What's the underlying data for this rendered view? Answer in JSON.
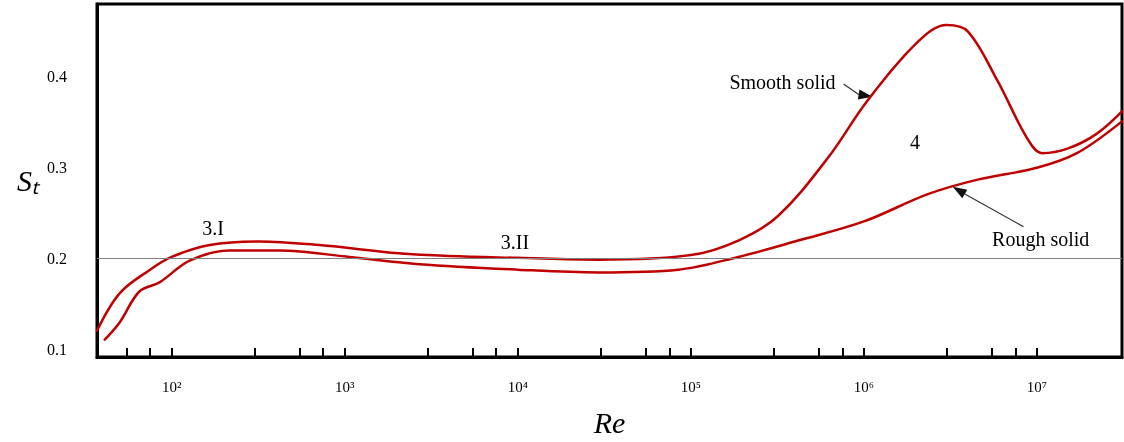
{
  "chart_data": {
    "type": "line",
    "xlabel": "Re",
    "ylabel": "Sₜ",
    "log": "x",
    "xlim": [
      37,
      31000000
    ],
    "ylim": [
      0.092,
      0.48
    ],
    "xticks": [
      {
        "value": 55,
        "label": null
      },
      {
        "value": 75,
        "label": null
      },
      {
        "value": 100,
        "label": "10²"
      },
      {
        "value": 300,
        "label": null
      },
      {
        "value": 550,
        "label": null
      },
      {
        "value": 750,
        "label": null
      },
      {
        "value": 1000,
        "label": "10³"
      },
      {
        "value": 3000,
        "label": null
      },
      {
        "value": 5500,
        "label": null
      },
      {
        "value": 7500,
        "label": null
      },
      {
        "value": 10000,
        "label": "10⁴"
      },
      {
        "value": 30000,
        "label": null
      },
      {
        "value": 55000,
        "label": null
      },
      {
        "value": 75000,
        "label": null
      },
      {
        "value": 100000,
        "label": "10⁵"
      },
      {
        "value": 300000,
        "label": null
      },
      {
        "value": 550000,
        "label": null
      },
      {
        "value": 750000,
        "label": null
      },
      {
        "value": 1000000,
        "label": "10⁶"
      },
      {
        "value": 3000000,
        "label": null
      },
      {
        "value": 5500000,
        "label": null
      },
      {
        "value": 7500000,
        "label": null
      },
      {
        "value": 10000000,
        "label": "10⁷"
      }
    ],
    "yticks": [
      0.1,
      0.2,
      0.3,
      0.4
    ],
    "grid": false,
    "marker": "none",
    "line_style": "solid",
    "ref_lines": [
      {
        "axis": "y",
        "value": 0.2,
        "color": "#808080"
      }
    ],
    "series": [
      {
        "color": "#c00000",
        "x": [
          37,
          50,
          75,
          100,
          166,
          321,
          713,
          2060,
          4000,
          10000,
          29300,
          100000,
          188000,
          319000,
          620000,
          1050000,
          2040000,
          3000000,
          3980000,
          5900000,
          8800000,
          10700000,
          15000000,
          22000000,
          31000000
        ],
        "values": [
          0.121,
          0.162,
          0.188,
          0.202,
          0.215,
          0.219,
          0.215,
          0.206,
          0.203,
          0.201,
          0.199,
          0.204,
          0.22,
          0.247,
          0.311,
          0.374,
          0.438,
          0.457,
          0.45,
          0.396,
          0.332,
          0.316,
          0.321,
          0.337,
          0.362
        ]
      },
      {
        "color": "#c00000",
        "x": [
          41,
          50,
          65,
          85,
          127,
          216,
          419,
          1060,
          2690,
          10000,
          29300,
          84700,
          188000,
          417000,
          1000000,
          2340000,
          4540000,
          10000000,
          17000000,
          31000000
        ],
        "values": [
          0.111,
          0.13,
          0.164,
          0.174,
          0.198,
          0.209,
          0.209,
          0.202,
          0.194,
          0.188,
          0.185,
          0.188,
          0.202,
          0.22,
          0.241,
          0.271,
          0.287,
          0.3,
          0.316,
          0.351
        ]
      }
    ],
    "annotations": [
      "3.I",
      "3.II",
      "4",
      {
        "text": "Smooth solid",
        "x": 1120000,
        "y": 0.378
      },
      {
        "text": "Rough solid",
        "x": 3260000,
        "y": 0.279
      }
    ]
  }
}
